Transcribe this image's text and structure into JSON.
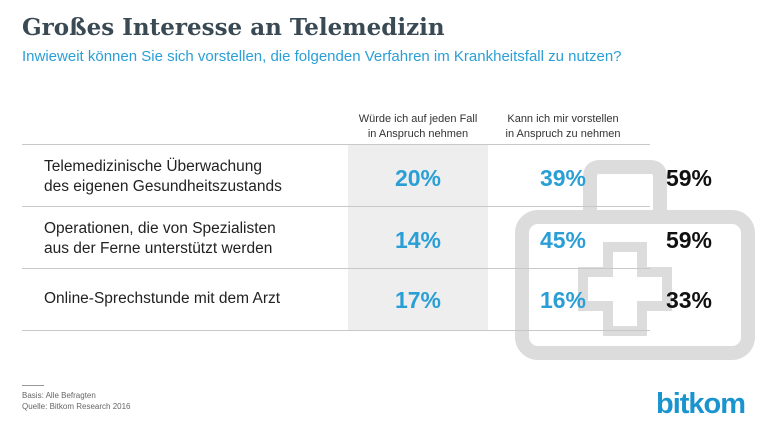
{
  "title": "Großes Interesse an Telemedizin",
  "subtitle": "Inwieweit können Sie sich vorstellen, die folgenden Verfahren im Krankheitsfall zu nutzen?",
  "columns": [
    {
      "line1": "Würde ich auf jeden Fall",
      "line2": "in Anspruch nehmen"
    },
    {
      "line1": "Kann ich mir vorstellen",
      "line2": "in Anspruch zu nehmen"
    }
  ],
  "rows": [
    {
      "label_line1": "Telemedizinische Überwachung",
      "label_line2": "des eigenen Gesundheitszustands",
      "v1": "20%",
      "v2": "39%",
      "v3": "59%"
    },
    {
      "label_line1": "Operationen, die von Spezialisten",
      "label_line2": "aus der Ferne unterstützt werden",
      "v1": "14%",
      "v2": "45%",
      "v3": "59%"
    },
    {
      "label_line1": "Online-Sprechstunde mit dem Arzt",
      "label_line2": "",
      "v1": "17%",
      "v2": "16%",
      "v3": "33%"
    }
  ],
  "footer": {
    "basis": "Basis: Alle Befragten",
    "source": "Quelle: Bitkom Research 2016"
  },
  "logo": "bitkom",
  "colors": {
    "title": "#3a4a55",
    "accent": "#2a9fd6",
    "icon": "#dcdcdc",
    "column_bg": "#eeeeee"
  },
  "icons": [
    "first-aid-kit-icon"
  ],
  "chart_data": {
    "type": "table",
    "title": "Großes Interesse an Telemedizin",
    "subtitle": "Inwieweit können Sie sich vorstellen, die folgenden Verfahren im Krankheitsfall zu nutzen?",
    "categories": [
      "Telemedizinische Überwachung des eigenen Gesundheitszustands",
      "Operationen, die von Spezialisten aus der Ferne unterstützt werden",
      "Online-Sprechstunde mit dem Arzt"
    ],
    "series": [
      {
        "name": "Würde ich auf jeden Fall in Anspruch nehmen",
        "values": [
          20,
          14,
          17
        ]
      },
      {
        "name": "Kann ich mir vorstellen in Anspruch zu nehmen",
        "values": [
          39,
          45,
          16
        ]
      },
      {
        "values": [
          59,
          59,
          33
        ]
      }
    ]
  }
}
